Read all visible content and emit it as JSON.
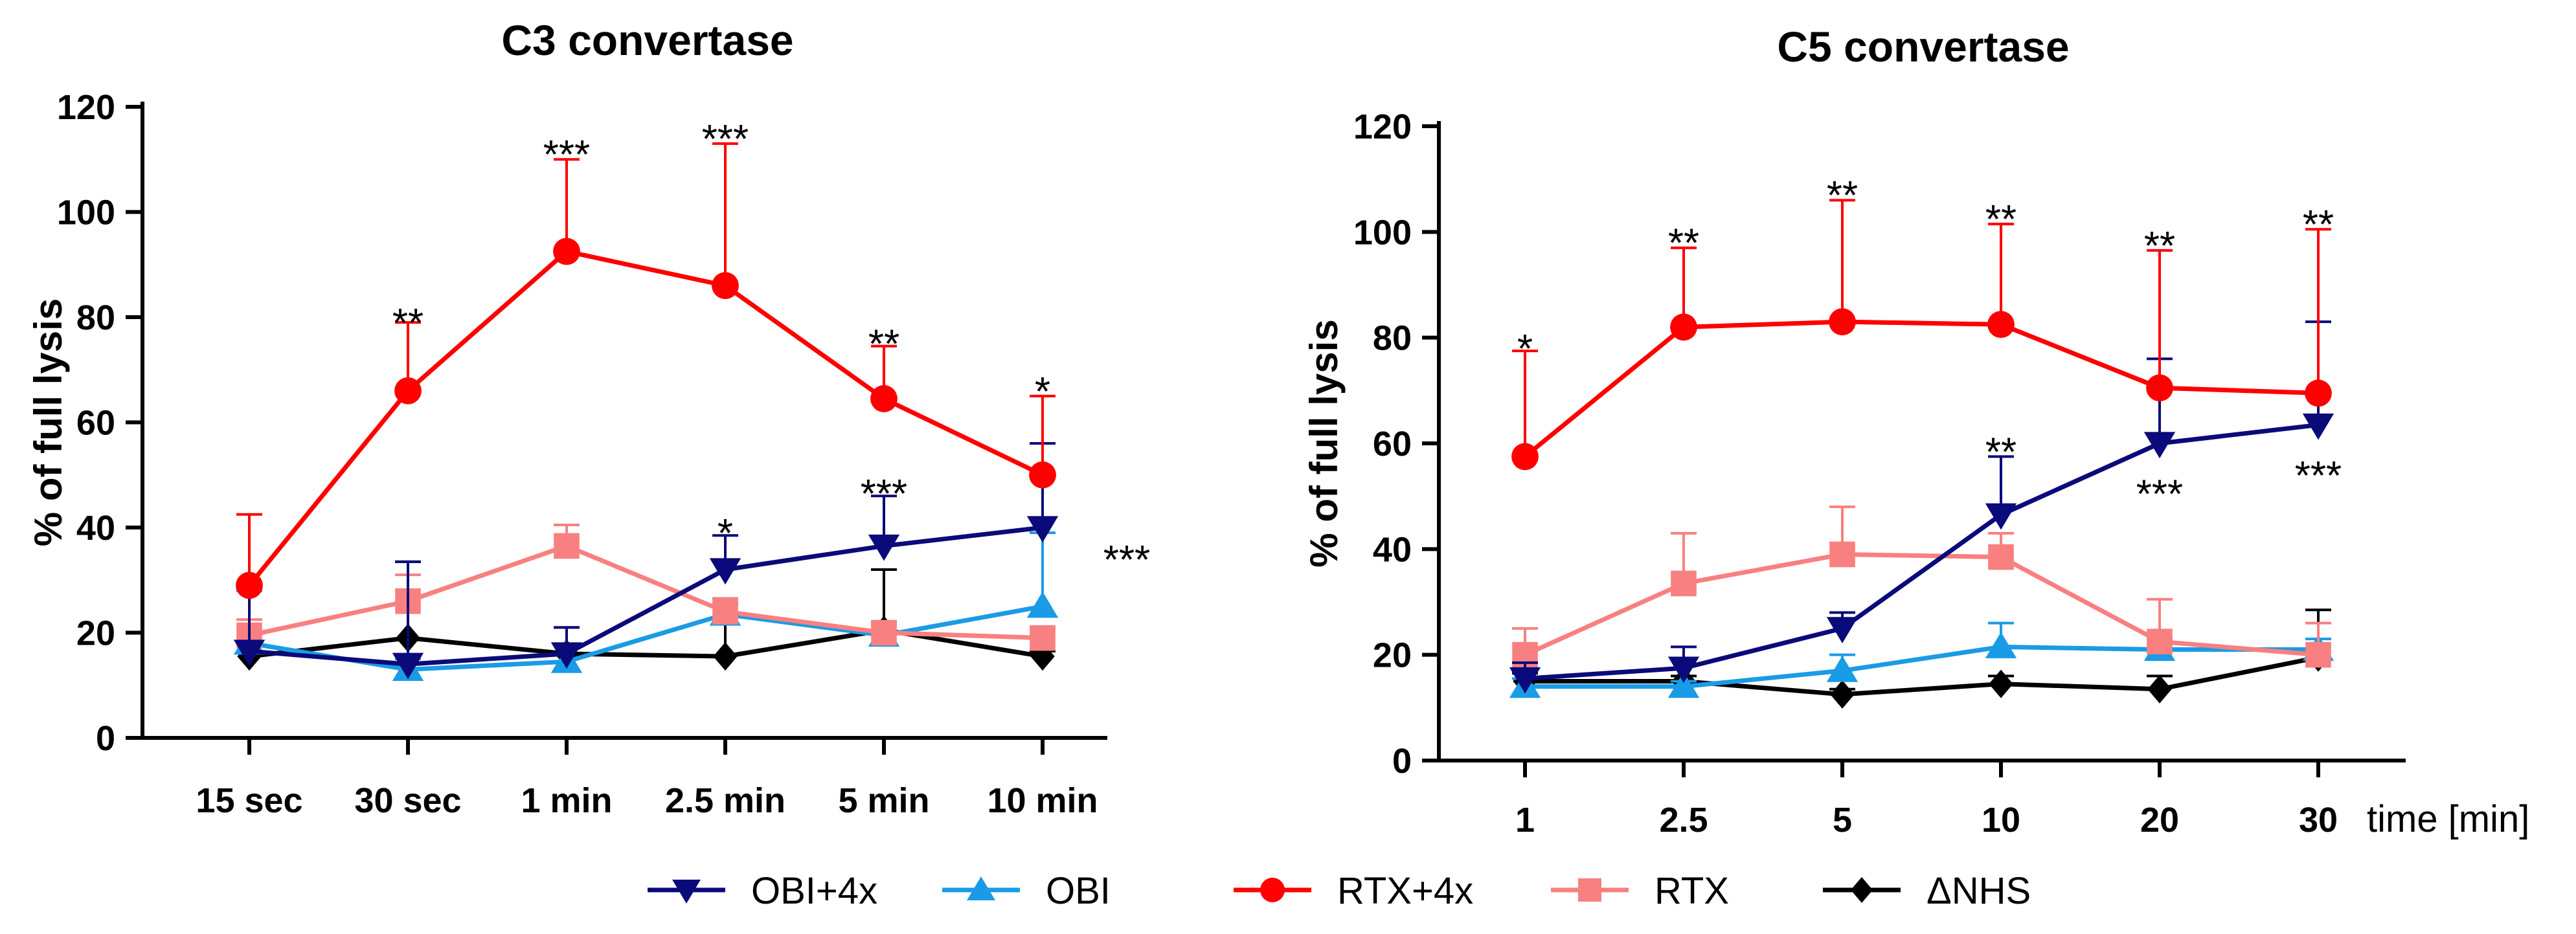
{
  "chart_data": [
    {
      "type": "line",
      "title": "C3 convertase",
      "xlabel": "",
      "ylabel": "% of full lysis",
      "ylim": [
        0,
        120
      ],
      "yticks": [
        0,
        20,
        40,
        60,
        80,
        100,
        120
      ],
      "categories": [
        "15 sec",
        "30 sec",
        "1 min",
        "2.5 min",
        "5 min",
        "10 min"
      ],
      "series": [
        {
          "name": "OBI+4x",
          "color": "#0a0a7a",
          "marker": "triangle-down",
          "values": [
            16.5,
            14,
            16,
            32,
            36.5,
            40
          ],
          "err": [
            12,
            19.5,
            5,
            6.5,
            9.5,
            16
          ]
        },
        {
          "name": "OBI",
          "color": "#1a9be6",
          "marker": "triangle-up",
          "values": [
            18,
            13,
            14.5,
            23.5,
            19.5,
            25
          ],
          "err": [
            10,
            2,
            3,
            2,
            2.5,
            14
          ]
        },
        {
          "name": "RTX+4x",
          "color": "#ff0000",
          "marker": "circle",
          "values": [
            29,
            66,
            92.5,
            86,
            64.5,
            50
          ],
          "err": [
            13.5,
            13,
            17.5,
            27,
            10,
            15
          ]
        },
        {
          "name": "RTX",
          "color": "#f88080",
          "marker": "square",
          "values": [
            19.5,
            26,
            36.5,
            24,
            20,
            19
          ],
          "err": [
            3,
            5,
            4,
            2.5,
            1.5,
            2
          ]
        },
        {
          "name": "ΔNHS",
          "color": "#000000",
          "marker": "diamond",
          "values": [
            15.5,
            19,
            16,
            15.5,
            20.5,
            15.5
          ],
          "err": [
            1,
            14.5,
            5,
            11,
            11.5,
            1
          ]
        }
      ],
      "annotations": [
        {
          "category": "30 sec",
          "y": 79,
          "text": "**"
        },
        {
          "category": "1 min",
          "y": 111,
          "text": "***"
        },
        {
          "category": "2.5 min",
          "y": 114,
          "text": "***"
        },
        {
          "category": "2.5 min",
          "y": 39,
          "text": "*"
        },
        {
          "category": "5 min",
          "y": 75,
          "text": "**"
        },
        {
          "category": "5 min",
          "y": 46.5,
          "text": "***"
        },
        {
          "category": "10 min",
          "y": 66,
          "text": "*"
        },
        {
          "category": "10 min",
          "y": 34,
          "text": "***",
          "offset": "right"
        }
      ]
    },
    {
      "type": "line",
      "title": "C5 convertase",
      "xlabel": "time [min]",
      "ylabel": "% of full lysis",
      "ylim": [
        0,
        120
      ],
      "yticks": [
        0,
        20,
        40,
        60,
        80,
        100,
        120
      ],
      "categories": [
        "1",
        "2.5",
        "5",
        "10",
        "20",
        "30"
      ],
      "series": [
        {
          "name": "OBI+4x",
          "color": "#0a0a7a",
          "marker": "triangle-down",
          "values": [
            15.5,
            17.5,
            25,
            46.5,
            60,
            63.5
          ],
          "err": [
            3,
            4,
            3,
            11,
            16,
            19.5
          ]
        },
        {
          "name": "OBI",
          "color": "#1a9be6",
          "marker": "triangle-up",
          "values": [
            14,
            14,
            17,
            21.5,
            21,
            21
          ],
          "err": [
            1.5,
            1,
            3,
            4.5,
            2,
            2
          ]
        },
        {
          "name": "RTX+4x",
          "color": "#ff0000",
          "marker": "circle",
          "values": [
            57.5,
            82,
            83,
            82.5,
            70.5,
            69.5
          ],
          "err": [
            20,
            15,
            23,
            19,
            26,
            31
          ]
        },
        {
          "name": "RTX",
          "color": "#f88080",
          "marker": "square",
          "values": [
            20,
            33.5,
            39,
            38.5,
            22.5,
            20
          ],
          "err": [
            5,
            9.5,
            9,
            4.5,
            8,
            6
          ]
        },
        {
          "name": "ΔNHS",
          "color": "#000000",
          "marker": "diamond",
          "values": [
            15,
            15,
            12.5,
            14.5,
            13.5,
            19.5
          ],
          "err": [
            1.5,
            1,
            1,
            1.5,
            2.5,
            9
          ]
        }
      ],
      "annotations": [
        {
          "category": "1",
          "y": 78,
          "text": "*"
        },
        {
          "category": "2.5",
          "y": 98,
          "text": "**"
        },
        {
          "category": "5",
          "y": 107,
          "text": "**"
        },
        {
          "category": "10",
          "y": 102.5,
          "text": "**"
        },
        {
          "category": "10",
          "y": 58.5,
          "text": "**"
        },
        {
          "category": "20",
          "y": 97.5,
          "text": "**"
        },
        {
          "category": "20",
          "y": 50.5,
          "text": "***",
          "offset": "below"
        },
        {
          "category": "30",
          "y": 101.5,
          "text": "**"
        },
        {
          "category": "30",
          "y": 54,
          "text": "***",
          "offset": "below"
        }
      ]
    }
  ],
  "legend": {
    "position": "bottom",
    "entries": [
      "OBI+4x",
      "OBI",
      "RTX+4x",
      "RTX",
      "ΔNHS"
    ]
  }
}
